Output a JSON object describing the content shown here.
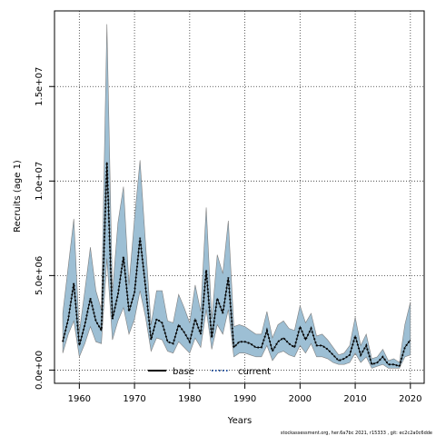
{
  "chart_data": {
    "type": "line",
    "xlabel": "Years",
    "ylabel": "Recruits (age 1)",
    "xlim": [
      1955.5,
      2022.5
    ],
    "ylim": [
      -700000,
      19000000
    ],
    "xticks": [
      1960,
      1970,
      1980,
      1990,
      2000,
      2010,
      2020
    ],
    "xtick_labels": [
      "1960",
      "1970",
      "1980",
      "1990",
      "2000",
      "2010",
      "2020"
    ],
    "yticks": [
      0,
      5000000,
      10000000,
      15000000
    ],
    "ytick_labels": [
      "0.0e+00",
      "5.0e+06",
      "1.0e+07",
      "1.5e+07"
    ],
    "grid": true,
    "legend": {
      "placement": "bottom-center",
      "entries": [
        {
          "label": "base",
          "style": "solid",
          "color": "#000000"
        },
        {
          "label": "current",
          "style": "dotted",
          "color": "#1f4e9e"
        }
      ]
    },
    "band_color": "#9dbfd4",
    "band_edge_color": "#7f7f7f",
    "years": [
      1957,
      1958,
      1959,
      1960,
      1961,
      1962,
      1963,
      1964,
      1965,
      1966,
      1967,
      1968,
      1969,
      1970,
      1971,
      1972,
      1973,
      1974,
      1975,
      1976,
      1977,
      1978,
      1979,
      1980,
      1981,
      1982,
      1983,
      1984,
      1985,
      1986,
      1987,
      1988,
      1989,
      1990,
      1991,
      1992,
      1993,
      1994,
      1995,
      1996,
      1997,
      1998,
      1999,
      2000,
      2001,
      2002,
      2003,
      2004,
      2005,
      2006,
      2007,
      2008,
      2009,
      2010,
      2011,
      2012,
      2013,
      2014,
      2015,
      2016,
      2017,
      2018,
      2019,
      2020
    ],
    "series": [
      {
        "name": "base",
        "values": [
          1500000,
          2700000,
          4600000,
          1300000,
          2400000,
          3800000,
          2600000,
          2100000,
          11000000,
          2700000,
          4000000,
          6000000,
          3100000,
          4100000,
          7000000,
          4400000,
          1600000,
          2700000,
          2500000,
          1500000,
          1400000,
          2400000,
          2000000,
          1500000,
          2700000,
          1900000,
          5300000,
          1700000,
          3800000,
          3000000,
          4900000,
          1200000,
          1500000,
          1500000,
          1400000,
          1200000,
          1200000,
          2100000,
          1000000,
          1500000,
          1700000,
          1400000,
          1200000,
          2300000,
          1600000,
          2200000,
          1300000,
          1300000,
          1100000,
          800000,
          500000,
          600000,
          800000,
          1800000,
          800000,
          1300000,
          300000,
          400000,
          700000,
          300000,
          300000,
          200000,
          1200000,
          1600000
        ]
      },
      {
        "name": "current",
        "values": [
          1500000,
          2700000,
          4600000,
          1300000,
          2400000,
          3800000,
          2600000,
          2100000,
          11000000,
          2700000,
          4000000,
          6000000,
          3100000,
          4100000,
          7000000,
          4400000,
          1600000,
          2700000,
          2500000,
          1500000,
          1400000,
          2400000,
          2000000,
          1500000,
          2700000,
          1900000,
          5300000,
          1700000,
          3800000,
          3000000,
          4900000,
          1200000,
          1500000,
          1500000,
          1400000,
          1200000,
          1200000,
          2100000,
          1000000,
          1500000,
          1700000,
          1400000,
          1200000,
          2300000,
          1600000,
          2200000,
          1300000,
          1300000,
          1100000,
          800000,
          500000,
          600000,
          800000,
          1800000,
          800000,
          1300000,
          300000,
          400000,
          700000,
          300000,
          300000,
          200000,
          1200000,
          1600000
        ]
      }
    ],
    "upper": [
      3000000,
      5500000,
      8000000,
      2000000,
      4200000,
      6500000,
      4200000,
      3200000,
      18300000,
      4100000,
      7800000,
      9700000,
      4500000,
      8000000,
      11100000,
      6700000,
      2400000,
      4200000,
      4200000,
      2600000,
      2500000,
      4000000,
      3300000,
      2500000,
      4500000,
      3100000,
      8600000,
      2700000,
      6100000,
      5100000,
      7900000,
      2300000,
      2400000,
      2300000,
      2100000,
      1900000,
      1900000,
      3100000,
      1700000,
      2400000,
      2600000,
      2200000,
      2100000,
      3400000,
      2500000,
      3000000,
      1800000,
      1900000,
      1600000,
      1200000,
      800000,
      900000,
      1300000,
      2800000,
      1300000,
      1900000,
      600000,
      700000,
      1100000,
      500000,
      600000,
      400000,
      2400000,
      3600000
    ],
    "lower": [
      900000,
      1900000,
      2600000,
      700000,
      1400000,
      2300000,
      1500000,
      1400000,
      5900000,
      1600000,
      2600000,
      3300000,
      1900000,
      2700000,
      4200000,
      2800000,
      1000000,
      1700000,
      1600000,
      1000000,
      900000,
      1500000,
      1200000,
      900000,
      1700000,
      1200000,
      3200000,
      1100000,
      2400000,
      1900000,
      3200000,
      700000,
      900000,
      900000,
      800000,
      700000,
      700000,
      1300000,
      500000,
      900000,
      1000000,
      800000,
      700000,
      1300000,
      900000,
      1400000,
      700000,
      700000,
      600000,
      400000,
      300000,
      300000,
      400000,
      900000,
      400000,
      700000,
      100000,
      200000,
      300000,
      100000,
      100000,
      100000,
      700000,
      800000
    ]
  },
  "footer": "stockassessment.org, her.6a7bc  2021, r15333 ,  git: ec2c2a0c6dde"
}
